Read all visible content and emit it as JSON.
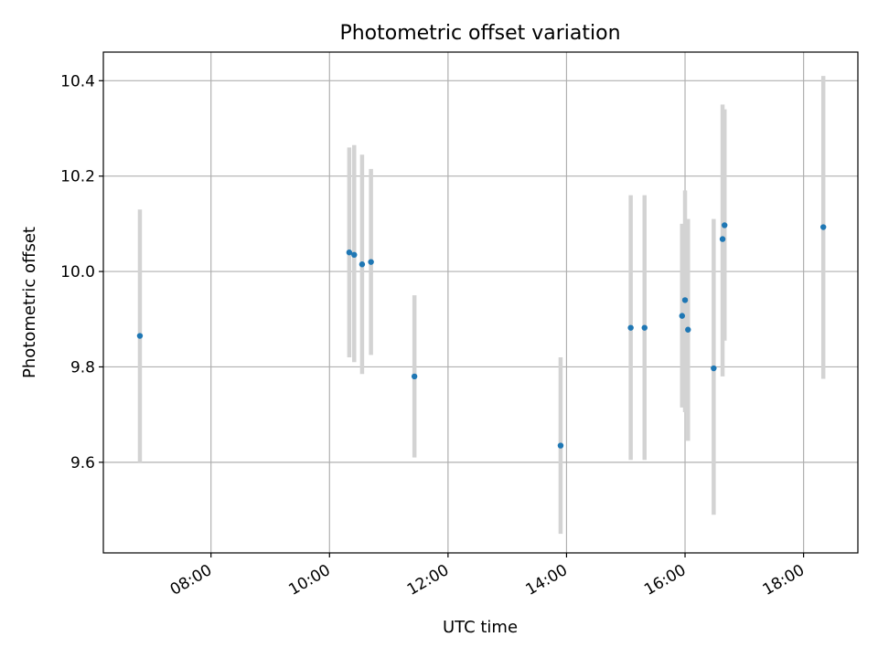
{
  "chart_data": {
    "type": "scatter",
    "title": "Photometric offset variation",
    "xlabel": "UTC time",
    "ylabel": "Photometric offset",
    "x_axis_kind": "time-of-day",
    "xlim": [
      "06:11",
      "18:55"
    ],
    "ylim": [
      9.41,
      10.46
    ],
    "xticks": [
      "08:00",
      "10:00",
      "12:00",
      "14:00",
      "16:00",
      "18:00"
    ],
    "yticks": [
      9.6,
      9.8,
      10.0,
      10.2,
      10.4
    ],
    "ytick_labels": [
      "9.6",
      "9.8",
      "10.0",
      "10.2",
      "10.4"
    ],
    "grid": true,
    "legend": false,
    "colors": {
      "point": "#1f77b4",
      "errorbar": "#d3d3d3",
      "grid": "#b0b0b0"
    },
    "points": [
      {
        "x": "06:48",
        "y": 9.865,
        "ylo": 9.6,
        "yhi": 10.13
      },
      {
        "x": "10:20",
        "y": 10.04,
        "ylo": 9.82,
        "yhi": 10.26
      },
      {
        "x": "10:25",
        "y": 10.035,
        "ylo": 9.81,
        "yhi": 10.265
      },
      {
        "x": "10:33",
        "y": 10.015,
        "ylo": 9.785,
        "yhi": 10.245
      },
      {
        "x": "10:42",
        "y": 10.02,
        "ylo": 9.825,
        "yhi": 10.215
      },
      {
        "x": "11:26",
        "y": 9.78,
        "ylo": 9.61,
        "yhi": 9.95
      },
      {
        "x": "13:54",
        "y": 9.635,
        "ylo": 9.45,
        "yhi": 9.82
      },
      {
        "x": "15:05",
        "y": 9.882,
        "ylo": 9.605,
        "yhi": 10.16
      },
      {
        "x": "15:19",
        "y": 9.882,
        "ylo": 9.605,
        "yhi": 10.16
      },
      {
        "x": "15:57",
        "y": 9.907,
        "ylo": 9.715,
        "yhi": 10.1
      },
      {
        "x": "16:00",
        "y": 9.94,
        "ylo": 9.705,
        "yhi": 10.17
      },
      {
        "x": "16:03",
        "y": 9.878,
        "ylo": 9.645,
        "yhi": 10.11
      },
      {
        "x": "16:29",
        "y": 9.797,
        "ylo": 9.49,
        "yhi": 10.11
      },
      {
        "x": "16:38",
        "y": 10.068,
        "ylo": 9.78,
        "yhi": 10.35
      },
      {
        "x": "16:40",
        "y": 10.097,
        "ylo": 9.855,
        "yhi": 10.34
      },
      {
        "x": "18:20",
        "y": 10.093,
        "ylo": 9.775,
        "yhi": 10.41
      }
    ]
  }
}
